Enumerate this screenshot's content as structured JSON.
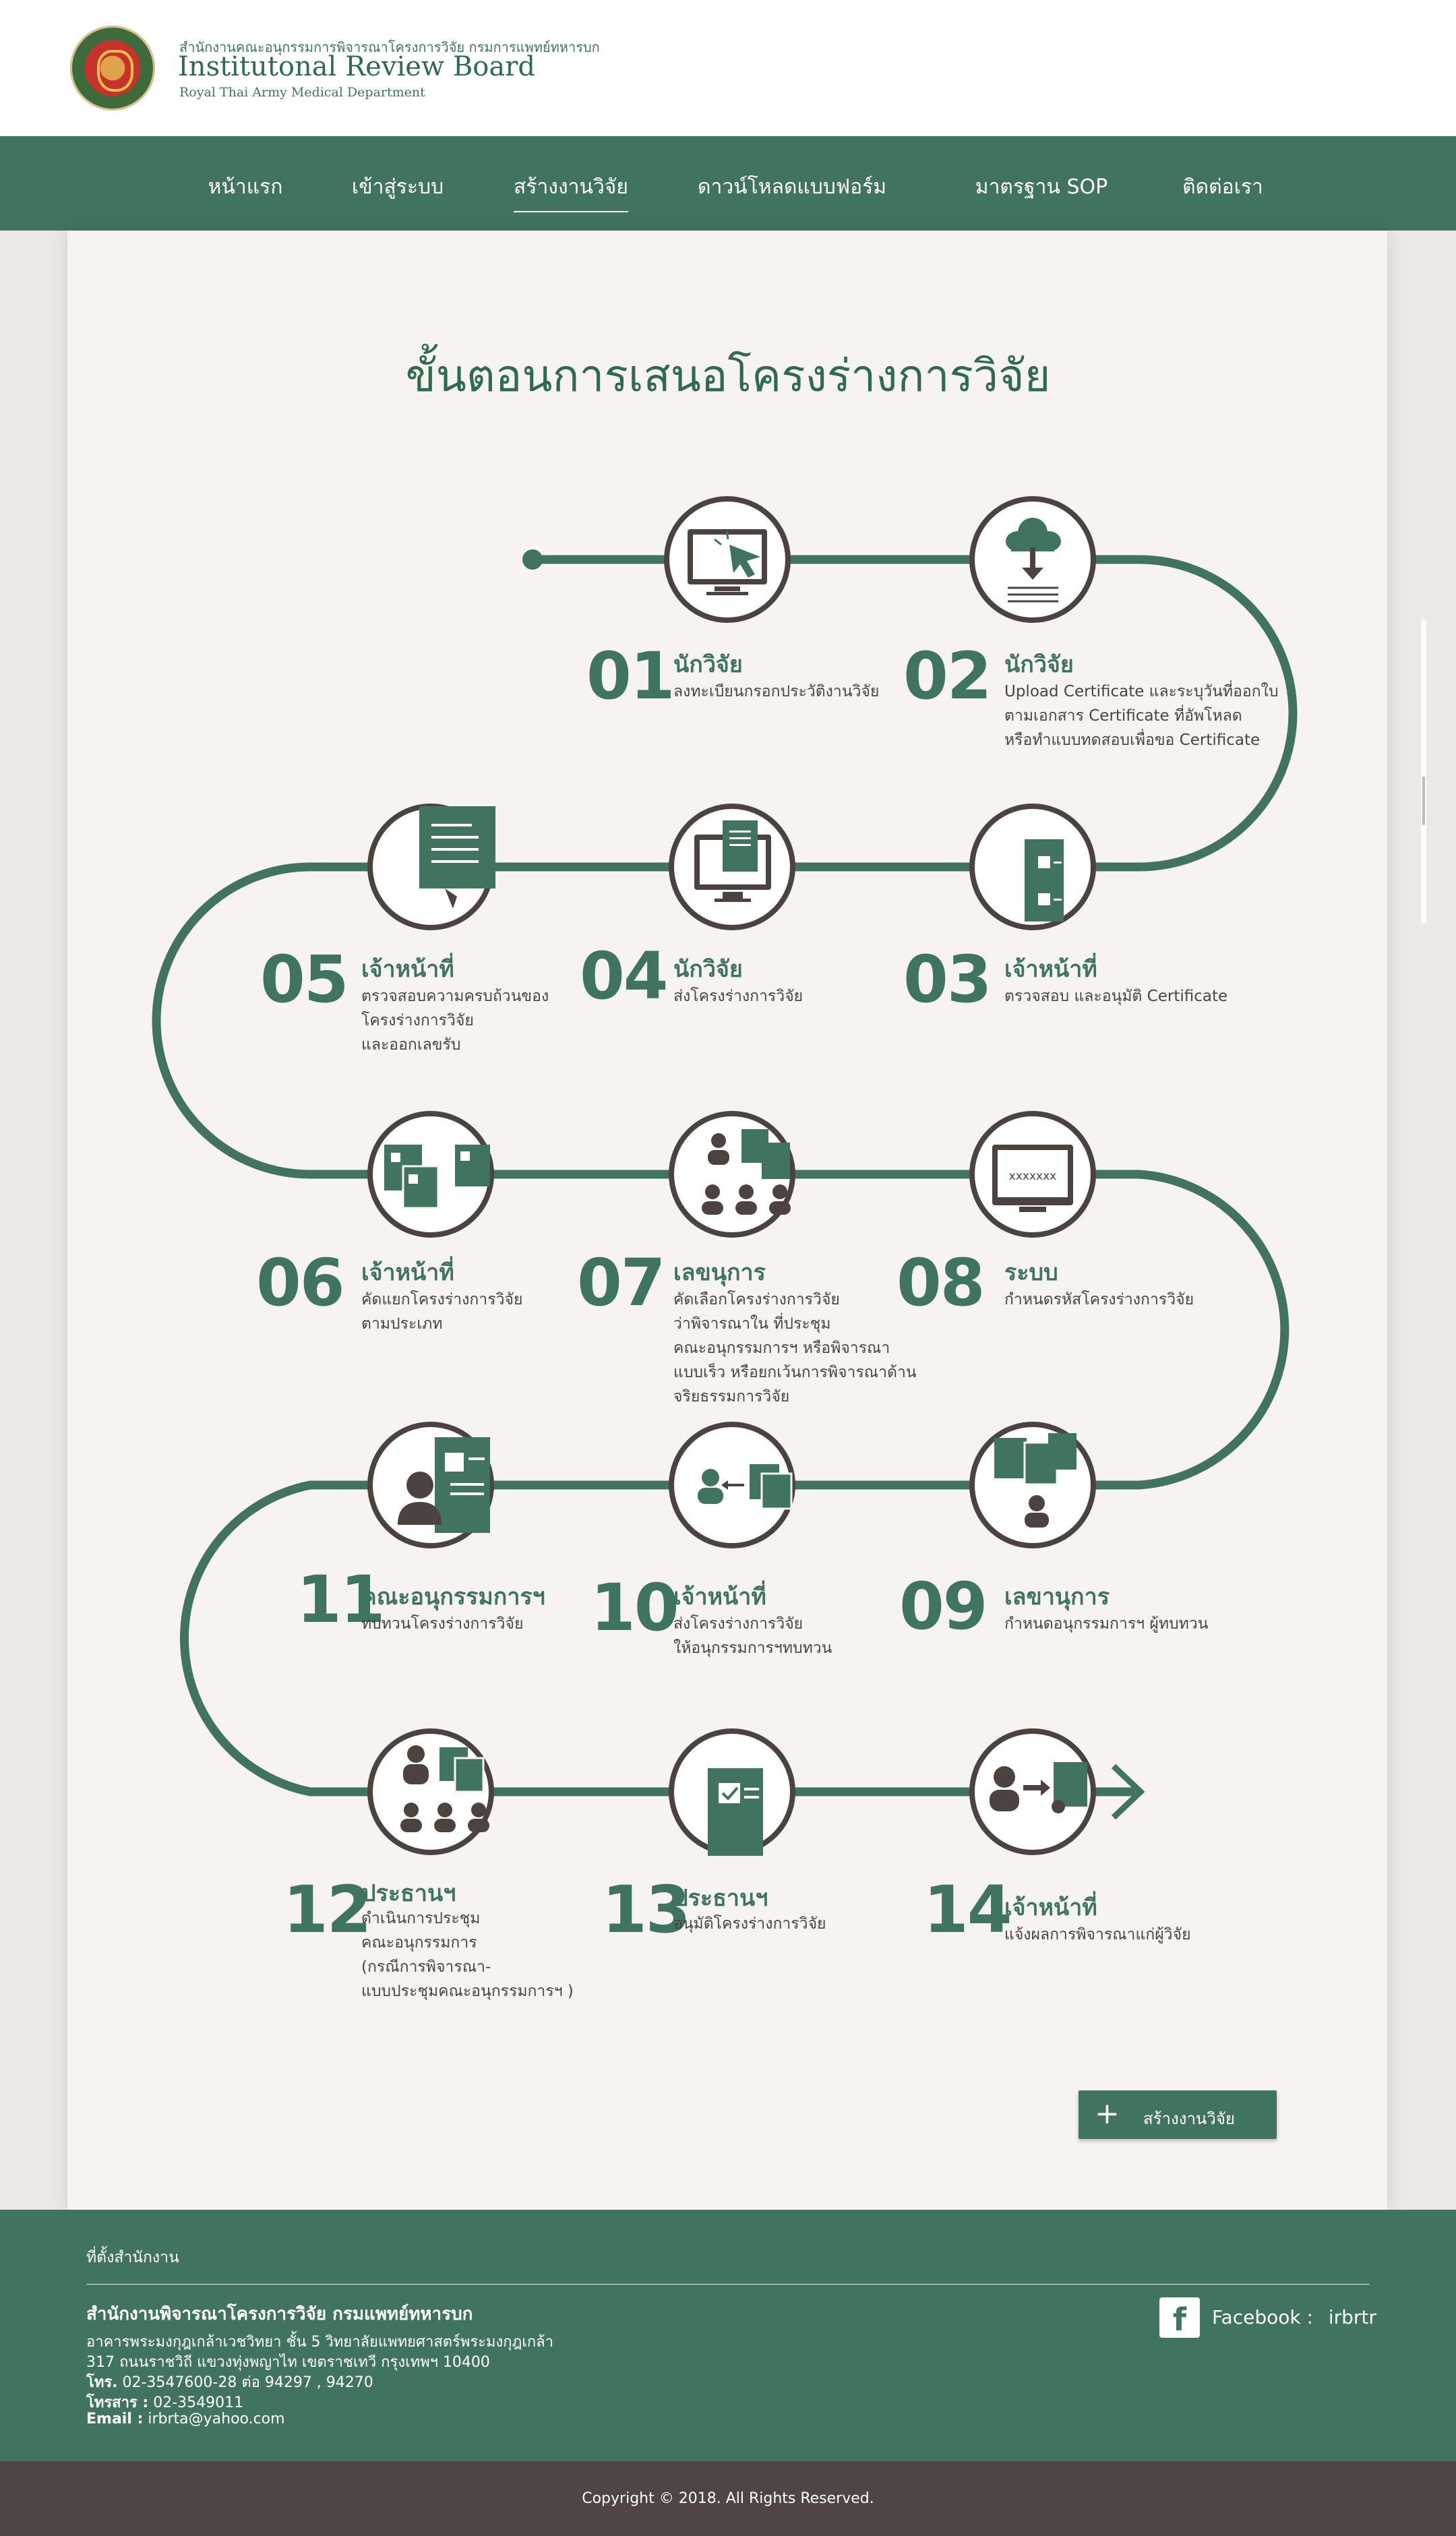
{
  "header": {
    "org_line1": "สำนักงานคณะอนุกรรมการพิจารณาโครงการวิจัย กรมการแพทย์ทหารบก",
    "org_line2": "Institutonal Review Board",
    "org_line3": "Royal Thai Army Medical Department"
  },
  "nav": {
    "items": [
      {
        "label": "หน้าแรก"
      },
      {
        "label": "เข้าสู่ระบบ"
      },
      {
        "label": "สร้างงานวิจัย",
        "active": true
      },
      {
        "label": "ดาวน์โหลดแบบฟอร์ม"
      },
      {
        "label": "มาตรฐาน SOP"
      },
      {
        "label": "ติดต่อเรา"
      }
    ]
  },
  "main": {
    "title": "ขั้นตอนการเสนอโครงร่างการวิจัย",
    "colors": {
      "green": "#41745f",
      "dark": "#4c4240",
      "paper": "#f7f3f1"
    },
    "steps": [
      {
        "num": "01",
        "role": "นักวิจัย",
        "desc": [
          "ลงทะเบียนกรอกประวัติงานวิจัย"
        ],
        "icon": "monitor-cursor-icon"
      },
      {
        "num": "02",
        "role": "นักวิจัย",
        "desc": [
          "Upload Certificate และระบุวันที่ออกใบ",
          "ตามเอกสาร Certificate ที่อัพโหลด",
          "หรือทำแบบทดสอบเพื่อขอ Certificate"
        ],
        "icon": "cloud-upload-icon"
      },
      {
        "num": "03",
        "role": "เจ้าหน้าที่",
        "desc": [
          "ตรวจสอบ และอนุมัติ Certificate"
        ],
        "icon": "checklist-icon"
      },
      {
        "num": "04",
        "role": "นักวิจัย",
        "desc": [
          "ส่งโครงร่างการวิจัย"
        ],
        "icon": "monitor-document-icon"
      },
      {
        "num": "05",
        "role": "เจ้าหน้าที่",
        "desc": [
          "ตรวจสอบความครบถ้วนของ",
          "โครงร่างการวิจัย",
          "และออกเลขรับ"
        ],
        "icon": "document-icon"
      },
      {
        "num": "06",
        "role": "เจ้าหน้าที่",
        "desc": [
          "คัดแยกโครงร่างการวิจัย",
          "ตามประเภท"
        ],
        "icon": "sorted-documents-icon"
      },
      {
        "num": "07",
        "role": "เลขนุการ",
        "desc": [
          "คัดเลือกโครงร่างการวิจัย",
          "ว่าพิจารณาใน ที่ประชุม",
          "คณะอนุกรรมการฯ หรือพิจารณา",
          "แบบเร็ว หรือยกเว้นการพิจารณาด้าน",
          "จริยธรรมการวิจัย"
        ],
        "icon": "committee-documents-icon"
      },
      {
        "num": "08",
        "role": "ระบบ",
        "desc": [
          "กำหนดรหัสโครงร่างการวิจัย"
        ],
        "icon": "monitor-code-icon",
        "screen_text": "xxxxxxx"
      },
      {
        "num": "09",
        "role": "เลขานุการ",
        "desc": [
          "กำหนดอนุกรรมการฯ ผู้ทบทวน"
        ],
        "icon": "assign-reviewer-icon"
      },
      {
        "num": "10",
        "role": "เจ้าหน้าที่",
        "desc": [
          "ส่งโครงร่างการวิจัย",
          "ให้อนุกรรมการฯทบทวน"
        ],
        "icon": "send-to-reviewer-icon"
      },
      {
        "num": "11",
        "role": "คณะอนุกรรมการฯ",
        "desc": [
          "ทบทวนโครงร่างการวิจัย"
        ],
        "icon": "reviewer-document-icon"
      },
      {
        "num": "12",
        "role": "ประธานฯ",
        "desc": [
          "ดำเนินการประชุม",
          "คณะอนุกรรมการ",
          "(กรณีการพิจารณา-",
          "แบบประชุมคณะอนุกรรมการฯ )"
        ],
        "icon": "meeting-icon"
      },
      {
        "num": "13",
        "role": "ประธานฯ",
        "desc": [
          "อนุมัติโครงร่างการวิจัย"
        ],
        "icon": "approved-document-icon"
      },
      {
        "num": "14",
        "role": "เจ้าหน้าที่",
        "desc": [
          "แจ้งผลการพิจารณาแก่ผู้วิจัย"
        ],
        "icon": "notify-researcher-icon"
      }
    ],
    "cta_label": "สร้างงานวิจัย"
  },
  "footer": {
    "location_label": "ที่ตั้งสำนักงาน",
    "org_name": "สำนักงานพิจารณาโครงการวิจัย กรมแพทย์ทหารบก",
    "address_line1": "อาคารพระมงกุฎเกล้าเวชวิทยา ชั้น 5  วิทยาลัยแพทยศาสตร์พระมงกุฎเกล้า",
    "address_line2": "317 ถนนราชวิถี แขวงทุ่งพญาไท เขตราชเทวี กรุงเทพฯ 10400",
    "tel_label": "โทร.",
    "tel_value": "02-3547600-28  ต่อ 94297 , 94270",
    "fax_label": "โทรสาร :",
    "fax_value": "02-3549011",
    "email_label": "Email :",
    "email_value": "irbrta@yahoo.com",
    "facebook_label": "Facebook :",
    "facebook_value": "irbrtr"
  },
  "copyright": "Copyright © 2018. All Rights Reserved."
}
